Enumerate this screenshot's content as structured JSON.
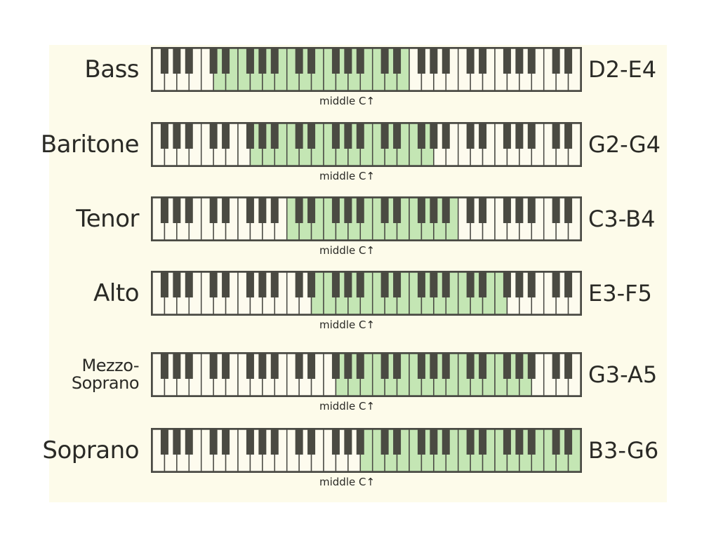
{
  "keyboard": {
    "first_note": "F1",
    "white_keys": 35
  },
  "middle_c_label": "middle C↑",
  "colors": {
    "highlight": "#c4e6b4",
    "black_key": "#4a4a42",
    "white_key": "#fdfbee",
    "background": "#fdfbea"
  },
  "voices": [
    {
      "name": "Bass",
      "range": "D2-E4",
      "low": "D2",
      "high": "E4"
    },
    {
      "name": "Baritone",
      "range": "G2-G4",
      "low": "G2",
      "high": "G4"
    },
    {
      "name": "Tenor",
      "range": "C3-B4",
      "low": "C3",
      "high": "B4"
    },
    {
      "name": "Alto",
      "range": "E3-F5",
      "low": "E3",
      "high": "F5"
    },
    {
      "name": "Mezzo-\nSoprano",
      "range": "G3-A5",
      "low": "G3",
      "high": "A5"
    },
    {
      "name": "Soprano",
      "range": "B3-G6",
      "low": "B3",
      "high": "G6"
    }
  ]
}
